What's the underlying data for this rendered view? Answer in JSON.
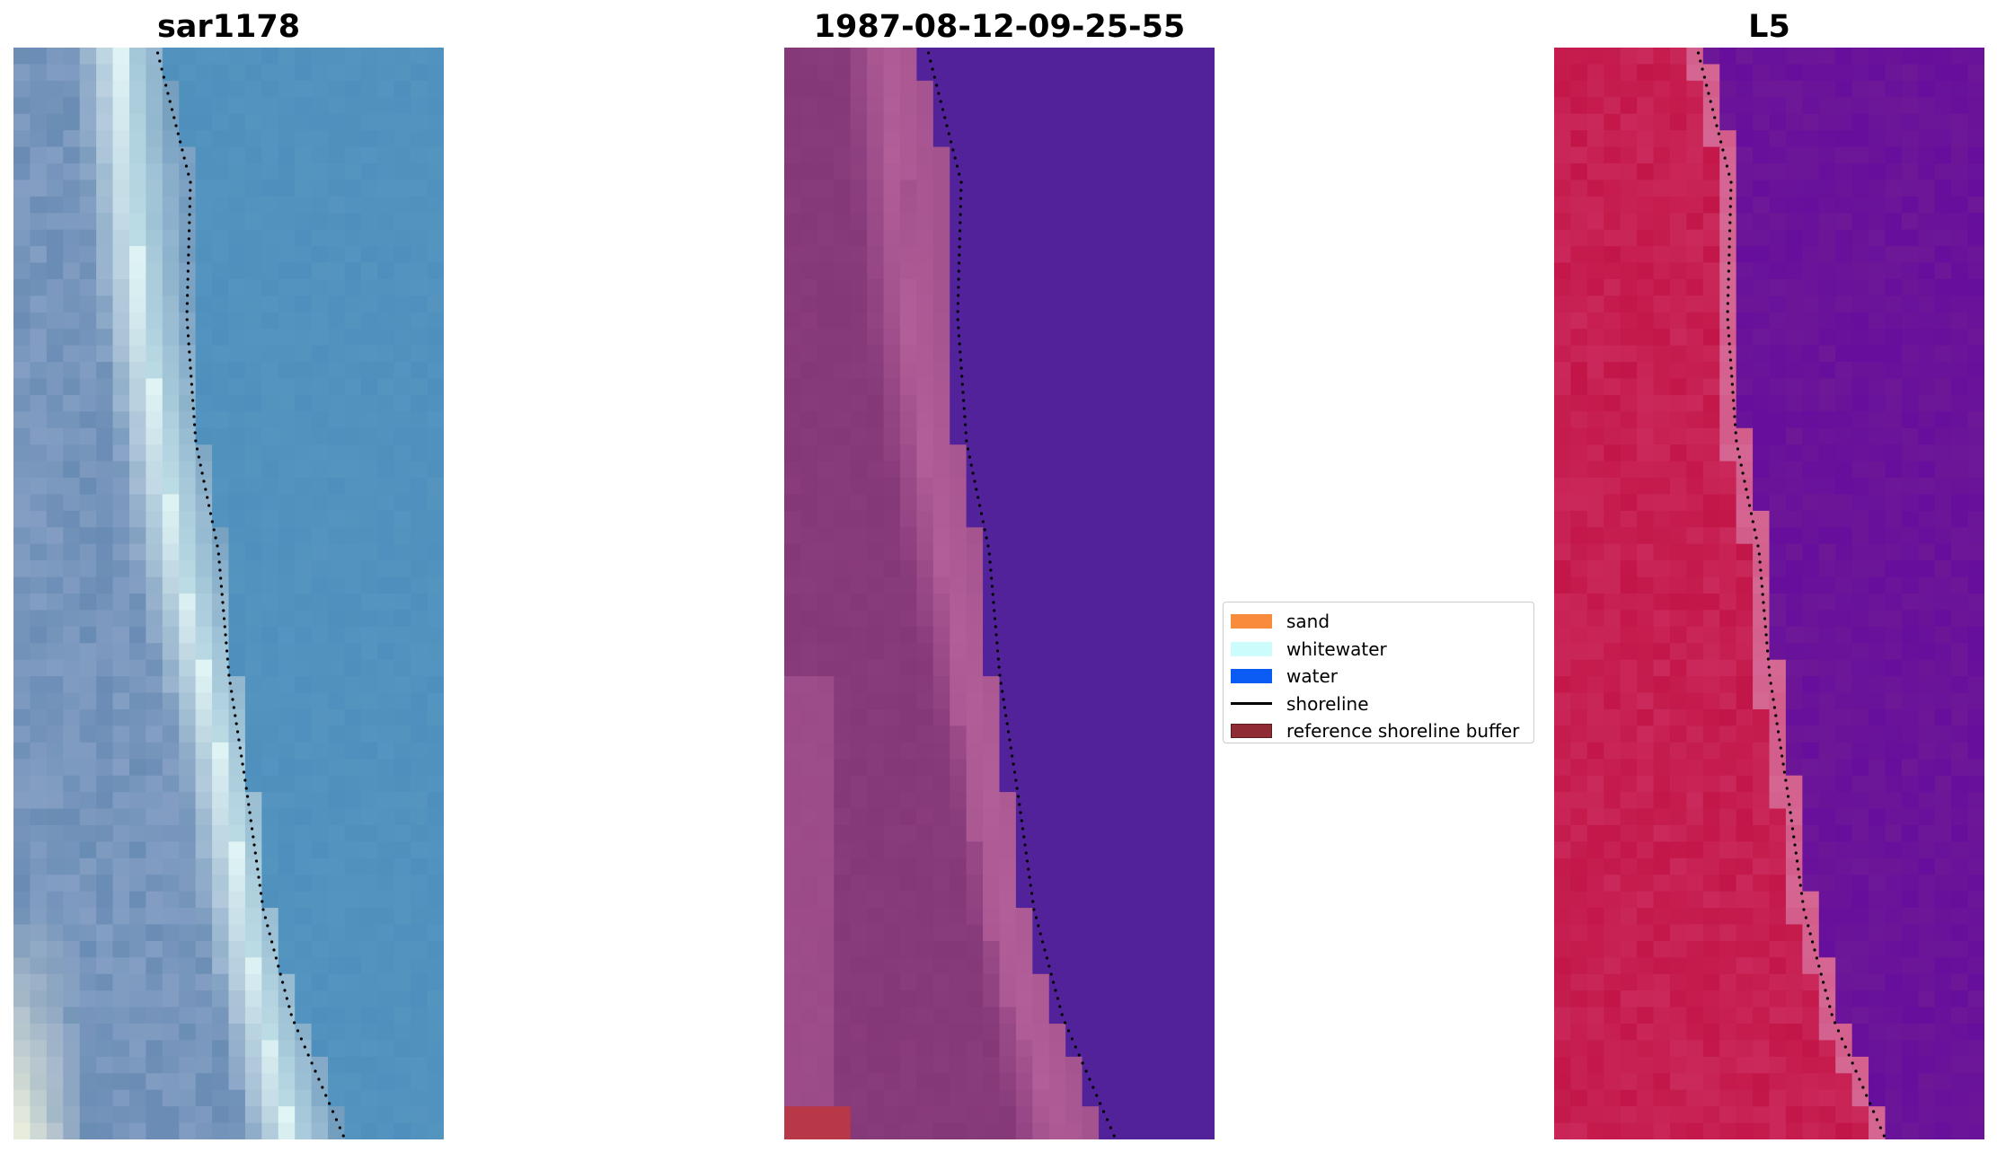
{
  "panels": [
    {
      "title": "sar1178",
      "kind": "rgb",
      "base_color": "#4f8fbd"
    },
    {
      "title": "1987-08-12-09-25-55",
      "kind": "classified",
      "base_color": "#52229a"
    },
    {
      "title": "L5",
      "kind": "index",
      "base_color": "#6d1896"
    }
  ],
  "legend": {
    "items": [
      {
        "label": "sand",
        "color": "#f98c3c",
        "type": "patch"
      },
      {
        "label": "whitewater",
        "color": "#cdfcfc",
        "type": "patch"
      },
      {
        "label": "water",
        "color": "#0a5cf5",
        "type": "patch"
      },
      {
        "label": "shoreline",
        "color": "#000000",
        "type": "line"
      },
      {
        "label": "reference shoreline buffer",
        "color": "#8f2b34",
        "type": "patch"
      }
    ]
  }
}
